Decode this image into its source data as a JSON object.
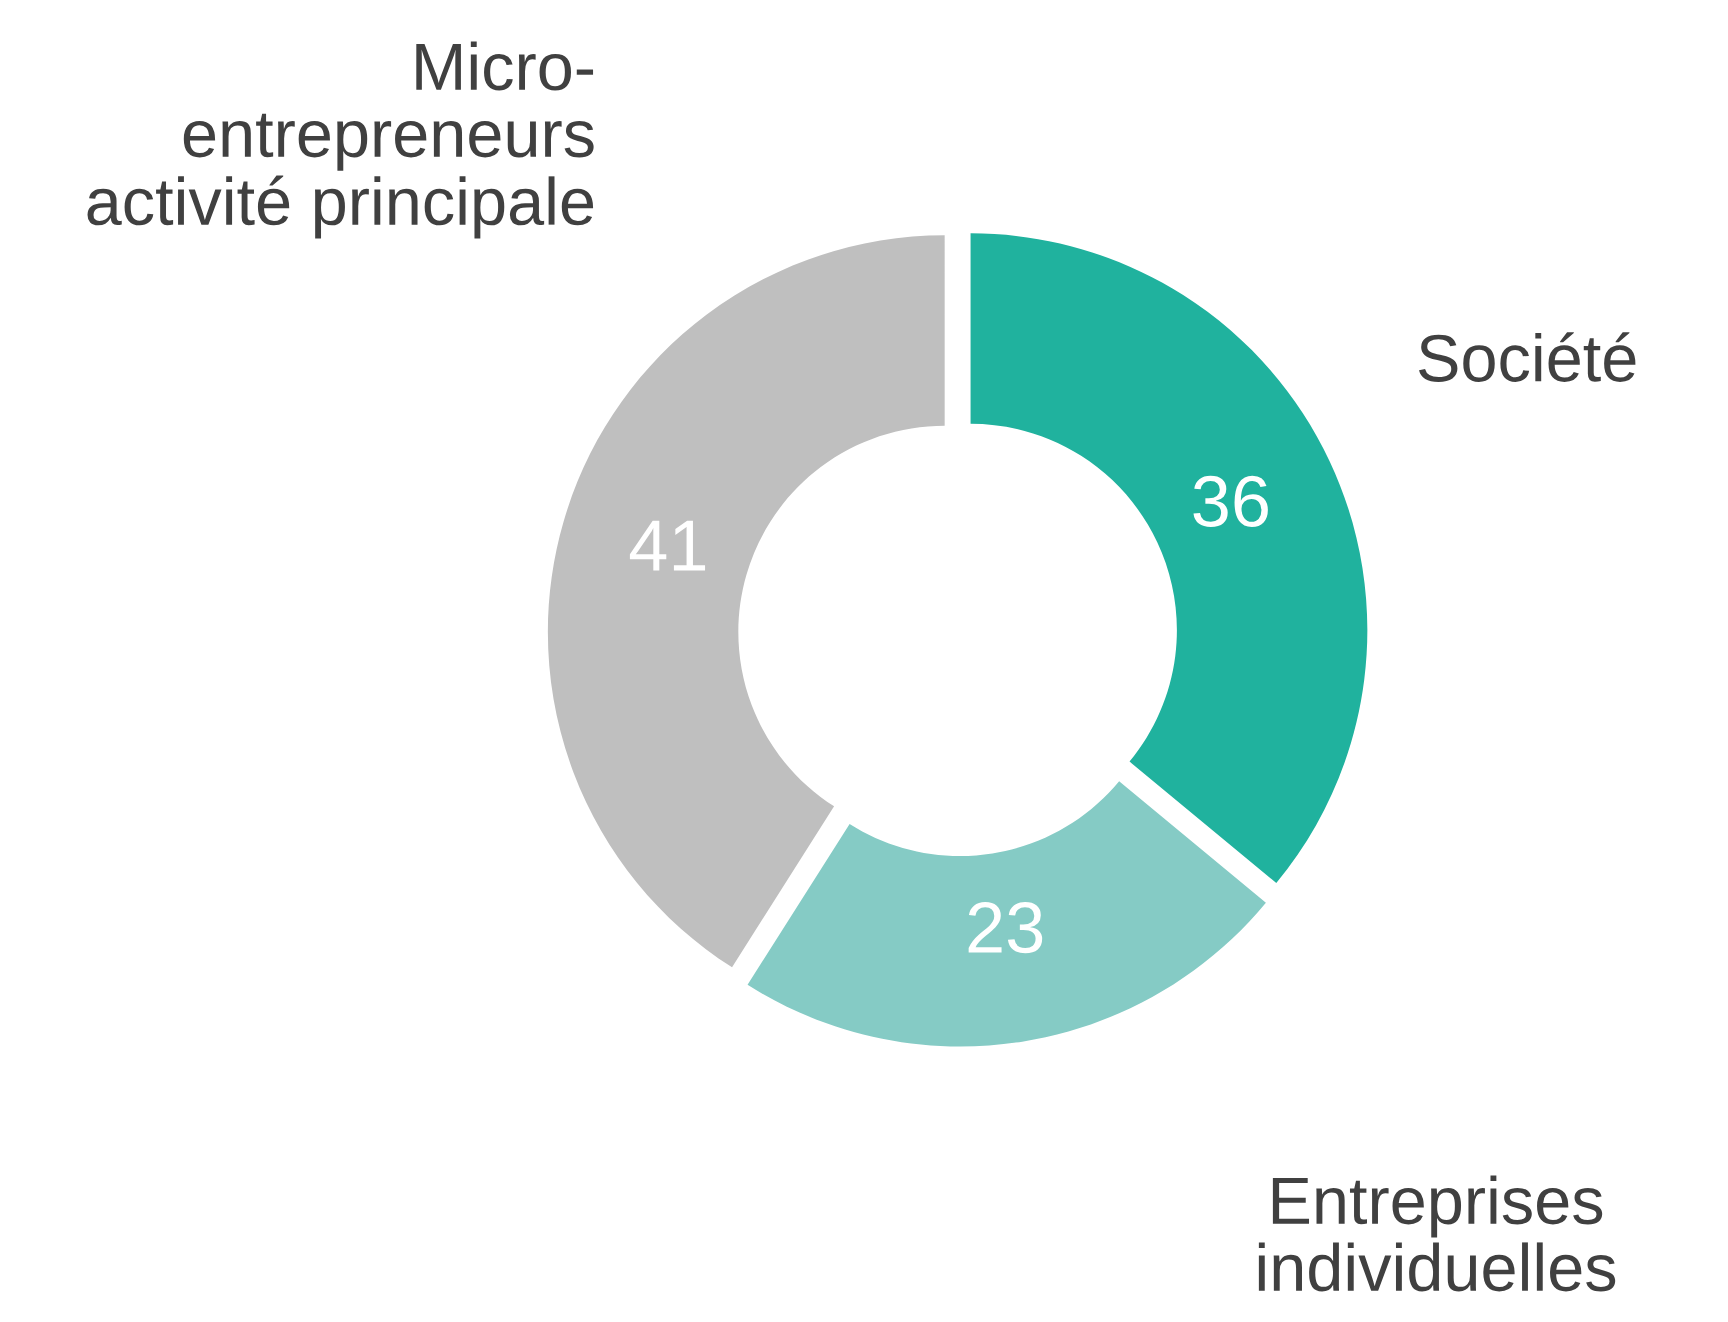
{
  "chart_data": {
    "type": "donut",
    "categories": [
      "Société",
      "Entreprises\nindividuelles",
      "Micro-\nentrepreneurs\nactivité principale"
    ],
    "values": [
      36,
      23,
      41
    ],
    "colors": [
      "#20b29e",
      "#85cbc5",
      "#bfbfbf"
    ],
    "data_labels": true,
    "legend": false
  }
}
